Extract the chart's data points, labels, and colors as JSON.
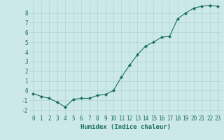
{
  "x": [
    0,
    1,
    2,
    3,
    4,
    5,
    6,
    7,
    8,
    9,
    10,
    11,
    12,
    13,
    14,
    15,
    16,
    17,
    18,
    19,
    20,
    21,
    22,
    23
  ],
  "y": [
    -0.3,
    -0.6,
    -0.8,
    -1.2,
    -1.7,
    -0.9,
    -0.8,
    -0.8,
    -0.5,
    -0.4,
    0.0,
    1.4,
    2.6,
    3.7,
    4.6,
    5.0,
    5.5,
    5.6,
    7.4,
    8.0,
    8.5,
    8.7,
    8.8,
    8.7
  ],
  "line_color": "#1a7060",
  "marker_color": "#1a7060",
  "bg_color": "#cce8e8",
  "grid_color": "#aed4d4",
  "xlabel": "Humidex (Indice chaleur)",
  "xlim": [
    -0.5,
    23.5
  ],
  "ylim": [
    -2.5,
    9.2
  ],
  "yticks": [
    -2,
    -1,
    0,
    1,
    2,
    3,
    4,
    5,
    6,
    7,
    8
  ],
  "xticks": [
    0,
    1,
    2,
    3,
    4,
    5,
    6,
    7,
    8,
    9,
    10,
    11,
    12,
    13,
    14,
    15,
    16,
    17,
    18,
    19,
    20,
    21,
    22,
    23
  ],
  "tick_fontsize": 5.5,
  "xlabel_fontsize": 6.5,
  "label_color": "#1a7060"
}
